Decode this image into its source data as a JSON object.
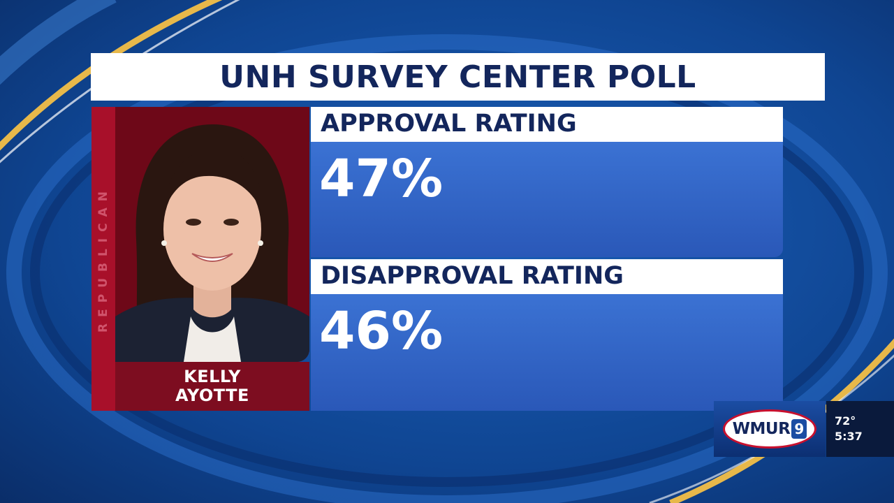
{
  "title": "UNH SURVEY CENTER POLL",
  "candidate": {
    "party": "REPUBLICAN",
    "name_line1": "KELLY",
    "name_line2": "AYOTTE"
  },
  "ratings": [
    {
      "label": "APPROVAL RATING",
      "value": "47%"
    },
    {
      "label": "DISAPPROVAL RATING",
      "value": "46%"
    }
  ],
  "bug": {
    "station": "WMUR",
    "channel": "9",
    "temperature": "72°",
    "time": "5:37"
  },
  "colors": {
    "background_blue": "#0d3f86",
    "title_navy": "#13265c",
    "republican_red": "#a8102a",
    "rating_blue": "#3b72d3",
    "gold_swoosh": "#e7b84a"
  }
}
